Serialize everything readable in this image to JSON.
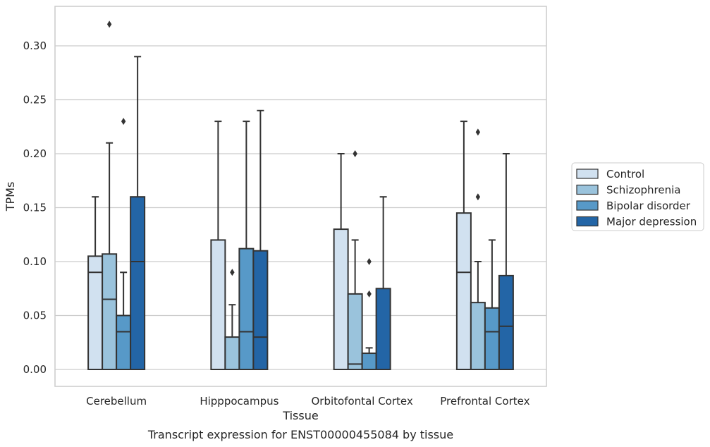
{
  "chart_data": {
    "type": "boxplot",
    "caption": "Transcript expression for ENST00000455084 by tissue",
    "xlabel": "Tissue",
    "ylabel": "TPMs",
    "ylim": [
      -0.015,
      0.336
    ],
    "yticks": [
      0.0,
      0.05,
      0.1,
      0.15,
      0.2,
      0.25,
      0.3
    ],
    "ytick_labels": [
      "0.00",
      "0.05",
      "0.10",
      "0.15",
      "0.20",
      "0.25",
      "0.30"
    ],
    "grid": "horizontal",
    "legend_position": "right",
    "categories": [
      "Cerebellum",
      "Hipppocampus",
      "Orbitofontal Cortex",
      "Prefrontal Cortex"
    ],
    "series": [
      {
        "name": "Control",
        "color": "#d1e1f0",
        "boxes": [
          {
            "min": 0.0,
            "q1": 0.0,
            "median": 0.09,
            "q3": 0.105,
            "max": 0.16,
            "outliers": []
          },
          {
            "min": 0.0,
            "q1": 0.0,
            "median": 0.0,
            "q3": 0.12,
            "max": 0.23,
            "outliers": []
          },
          {
            "min": 0.0,
            "q1": 0.0,
            "median": 0.0,
            "q3": 0.13,
            "max": 0.2,
            "outliers": []
          },
          {
            "min": 0.0,
            "q1": 0.0,
            "median": 0.09,
            "q3": 0.145,
            "max": 0.23,
            "outliers": []
          }
        ]
      },
      {
        "name": "Schizophrenia",
        "color": "#9ac3dc",
        "boxes": [
          {
            "min": 0.0,
            "q1": 0.0,
            "median": 0.065,
            "q3": 0.107,
            "max": 0.21,
            "outliers": [
              0.32
            ]
          },
          {
            "min": 0.0,
            "q1": 0.0,
            "median": 0.0,
            "q3": 0.03,
            "max": 0.06,
            "outliers": [
              0.09
            ]
          },
          {
            "min": 0.0,
            "q1": 0.0,
            "median": 0.005,
            "q3": 0.07,
            "max": 0.12,
            "outliers": [
              0.2
            ]
          },
          {
            "min": 0.0,
            "q1": 0.0,
            "median": 0.0,
            "q3": 0.062,
            "max": 0.1,
            "outliers": [
              0.16,
              0.22
            ]
          }
        ]
      },
      {
        "name": "Bipolar disorder",
        "color": "#5799c8",
        "boxes": [
          {
            "min": 0.0,
            "q1": 0.0,
            "median": 0.035,
            "q3": 0.05,
            "max": 0.09,
            "outliers": [
              0.23
            ]
          },
          {
            "min": 0.0,
            "q1": 0.0,
            "median": 0.035,
            "q3": 0.112,
            "max": 0.23,
            "outliers": []
          },
          {
            "min": 0.0,
            "q1": 0.0,
            "median": 0.0,
            "q3": 0.015,
            "max": 0.02,
            "outliers": [
              0.07,
              0.1
            ]
          },
          {
            "min": 0.0,
            "q1": 0.0,
            "median": 0.035,
            "q3": 0.057,
            "max": 0.12,
            "outliers": []
          }
        ]
      },
      {
        "name": "Major depression",
        "color": "#2365a6",
        "boxes": [
          {
            "min": 0.0,
            "q1": 0.0,
            "median": 0.1,
            "q3": 0.16,
            "max": 0.29,
            "outliers": []
          },
          {
            "min": 0.0,
            "q1": 0.0,
            "median": 0.03,
            "q3": 0.11,
            "max": 0.24,
            "outliers": []
          },
          {
            "min": 0.0,
            "q1": 0.0,
            "median": 0.0,
            "q3": 0.075,
            "max": 0.16,
            "outliers": []
          },
          {
            "min": 0.0,
            "q1": 0.0,
            "median": 0.04,
            "q3": 0.087,
            "max": 0.2,
            "outliers": []
          }
        ]
      }
    ]
  }
}
